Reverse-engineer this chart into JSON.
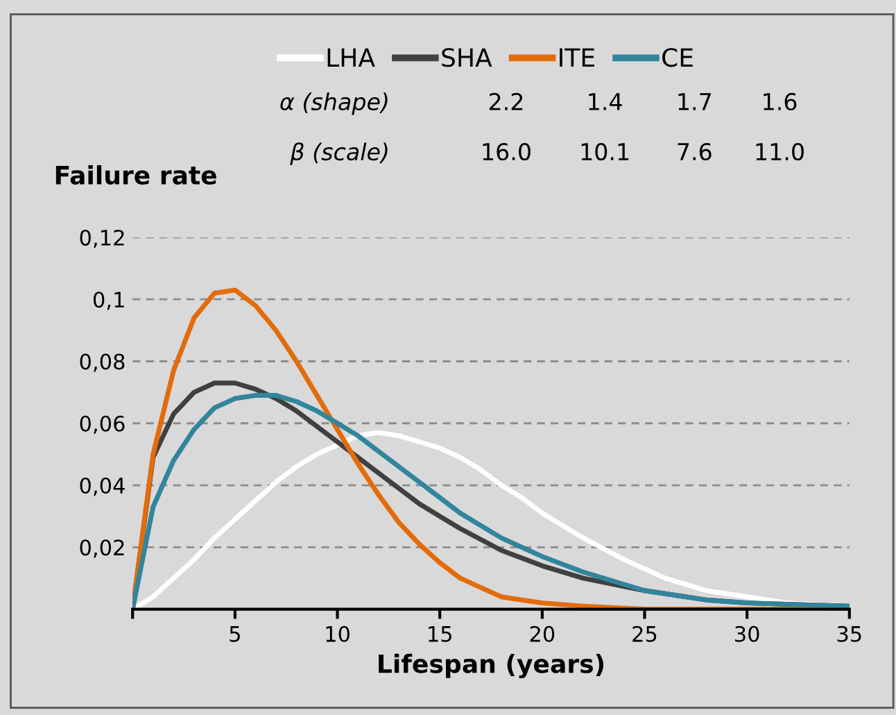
{
  "chart_data": {
    "type": "line",
    "ylabel": "Failure rate",
    "xlabel": "Lifespan (years)",
    "annotations": [
      "α (shape)",
      "2.2",
      "1.4",
      "1.7",
      "1.6",
      "β (scale)",
      "16.0",
      "10.1",
      "7.6",
      "11.0"
    ],
    "series": [
      {
        "name": "LHA",
        "color": "#ffffff",
        "x": [
          0,
          1,
          2,
          3,
          4,
          5,
          6,
          7,
          8,
          9,
          10,
          11,
          12,
          13,
          14,
          15,
          16,
          17,
          18,
          19,
          20,
          22,
          24,
          26,
          28,
          30,
          32,
          35
        ],
        "values": [
          0,
          0.004,
          0.01,
          0.016,
          0.023,
          0.029,
          0.035,
          0.041,
          0.046,
          0.05,
          0.053,
          0.056,
          0.057,
          0.056,
          0.054,
          0.052,
          0.049,
          0.045,
          0.04,
          0.036,
          0.031,
          0.023,
          0.016,
          0.01,
          0.006,
          0.004,
          0.002,
          0.001
        ]
      },
      {
        "name": "SHA",
        "color": "#404040",
        "x": [
          0,
          1,
          2,
          3,
          4,
          5,
          6,
          7,
          8,
          9,
          10,
          11,
          12,
          13,
          14,
          15,
          16,
          18,
          20,
          22,
          25,
          28,
          30,
          35
        ],
        "values": [
          0,
          0.049,
          0.063,
          0.07,
          0.073,
          0.073,
          0.071,
          0.068,
          0.064,
          0.059,
          0.054,
          0.049,
          0.044,
          0.039,
          0.034,
          0.03,
          0.026,
          0.019,
          0.014,
          0.01,
          0.006,
          0.003,
          0.002,
          0.001
        ]
      },
      {
        "name": "ITE",
        "color": "#e36c0a",
        "x": [
          0,
          1,
          2,
          3,
          4,
          5,
          6,
          7,
          8,
          9,
          10,
          11,
          12,
          13,
          14,
          15,
          16,
          17,
          18,
          20,
          22,
          25,
          35
        ],
        "values": [
          0,
          0.05,
          0.077,
          0.094,
          0.102,
          0.103,
          0.098,
          0.09,
          0.08,
          0.069,
          0.058,
          0.047,
          0.037,
          0.028,
          0.021,
          0.015,
          0.01,
          0.007,
          0.004,
          0.002,
          0.001,
          0,
          0
        ]
      },
      {
        "name": "CE",
        "color": "#31859c",
        "x": [
          0,
          1,
          2,
          3,
          4,
          5,
          6,
          7,
          8,
          9,
          10,
          11,
          12,
          13,
          14,
          15,
          16,
          18,
          20,
          22,
          25,
          28,
          30,
          35
        ],
        "values": [
          0,
          0.033,
          0.048,
          0.058,
          0.065,
          0.068,
          0.069,
          0.069,
          0.067,
          0.064,
          0.06,
          0.056,
          0.051,
          0.046,
          0.041,
          0.036,
          0.031,
          0.023,
          0.017,
          0.012,
          0.006,
          0.003,
          0.002,
          0.001
        ]
      }
    ],
    "xlim": [
      0,
      35
    ],
    "xticks": [
      {
        "value": 0,
        "label": null
      },
      5,
      10,
      15,
      20,
      25,
      30,
      35
    ],
    "ylim": [
      0,
      0.12
    ],
    "yticks": [
      {
        "value": 0.02,
        "label": "0,02"
      },
      {
        "value": 0.04,
        "label": "0,04"
      },
      {
        "value": 0.06,
        "label": "0,06"
      },
      {
        "value": 0.08,
        "label": "0,08"
      },
      {
        "value": 0.1,
        "label": "0,1"
      },
      {
        "value": 0.12,
        "label": "0,12"
      }
    ],
    "grid": "y",
    "legend": "top",
    "marker": "none",
    "line_style": "solid"
  }
}
